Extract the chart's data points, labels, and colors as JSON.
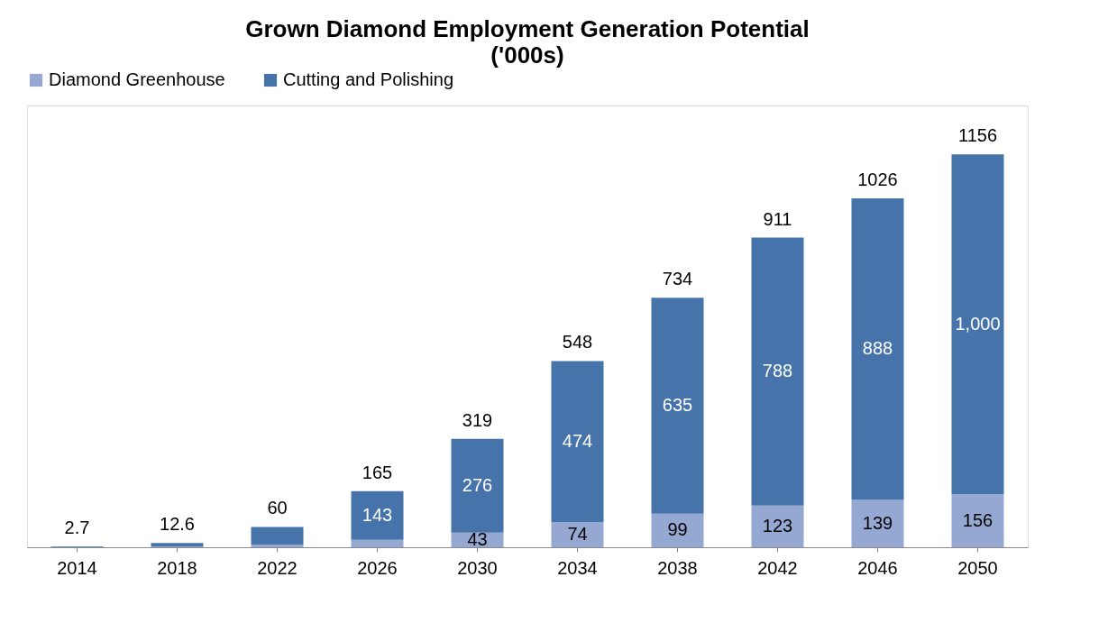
{
  "chart_data": {
    "type": "bar",
    "title": "Grown Diamond Employment Generation Potential",
    "subtitle": "('000s)",
    "categories": [
      "2014",
      "2018",
      "2022",
      "2026",
      "2030",
      "2034",
      "2038",
      "2042",
      "2046",
      "2050"
    ],
    "stacked": true,
    "legend": "top",
    "grid": false,
    "ylim": [
      0,
      1300
    ],
    "tick_labels": "x",
    "series": [
      {
        "name": "Diamond Greenhouse",
        "color": "#95a8d2",
        "values": [
          0.5,
          2,
          8,
          22,
          43,
          74,
          99,
          123,
          139,
          156
        ],
        "value_labels": [
          null,
          null,
          null,
          null,
          "43",
          "74",
          "99",
          "123",
          "139",
          "156"
        ]
      },
      {
        "name": "Cutting and Polishing",
        "color": "#4674aa",
        "values": [
          2.2,
          10.6,
          52,
          143,
          276,
          474,
          635,
          788,
          888,
          1000
        ],
        "value_labels": [
          null,
          null,
          null,
          "143",
          "276",
          "474",
          "635",
          "788",
          "888",
          "1,000"
        ]
      }
    ],
    "totals": [
      "2.7",
      "12.6",
      "60",
      "165",
      "319",
      "548",
      "734",
      "911",
      "1026",
      "1156"
    ]
  }
}
